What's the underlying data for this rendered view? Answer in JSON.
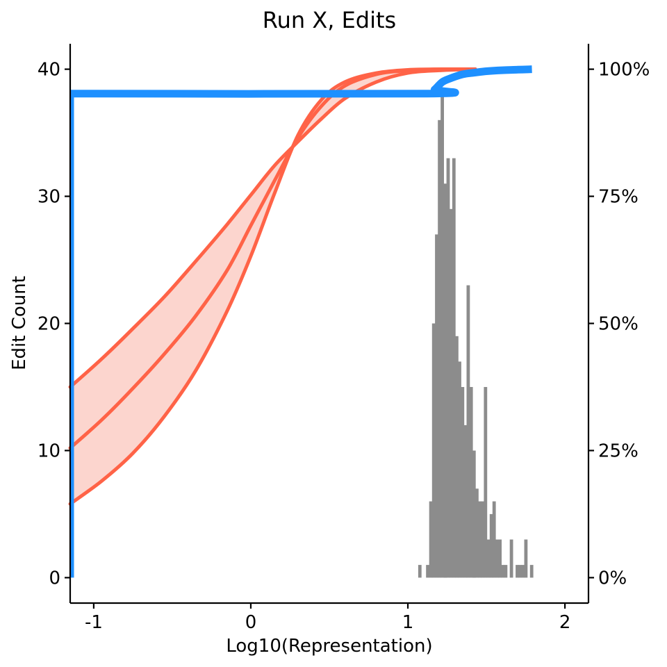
{
  "chart_data": {
    "type": "line",
    "title": "Run X, Edits",
    "xlabel": "Log10(Representation)",
    "ylabel": "Edit Count",
    "xlim": [
      -1.15,
      2.15
    ],
    "ylim": [
      -2,
      42
    ],
    "x_ticks": [
      -1,
      0,
      1,
      2
    ],
    "x_tick_labels": [
      "-1",
      "0",
      "1",
      "2"
    ],
    "y_ticks": [
      0,
      10,
      20,
      30,
      40
    ],
    "y_tick_labels": [
      "0",
      "10",
      "20",
      "30",
      "40"
    ],
    "y2_ticks": [
      0,
      0.25,
      0.5,
      0.75,
      1.0
    ],
    "y2_tick_labels": [
      "0%",
      "25%",
      "50%",
      "75%",
      "100%"
    ],
    "grid": false,
    "legend": "none",
    "colors": {
      "histogram": "#8c8c8c",
      "fit": "#ff6347",
      "band": "#fcd5ce",
      "cumulative": "#1e90ff"
    },
    "histogram": {
      "bin_width": 0.0185,
      "bins": [
        {
          "x": 1.075,
          "count": 1
        },
        {
          "x": 1.125,
          "count": 1
        },
        {
          "x": 1.145,
          "count": 6
        },
        {
          "x": 1.163,
          "count": 20
        },
        {
          "x": 1.182,
          "count": 27
        },
        {
          "x": 1.2,
          "count": 36
        },
        {
          "x": 1.218,
          "count": 38
        },
        {
          "x": 1.237,
          "count": 31
        },
        {
          "x": 1.255,
          "count": 33
        },
        {
          "x": 1.273,
          "count": 29
        },
        {
          "x": 1.292,
          "count": 33
        },
        {
          "x": 1.31,
          "count": 19
        },
        {
          "x": 1.328,
          "count": 17
        },
        {
          "x": 1.347,
          "count": 15
        },
        {
          "x": 1.365,
          "count": 12
        },
        {
          "x": 1.383,
          "count": 23
        },
        {
          "x": 1.402,
          "count": 15
        },
        {
          "x": 1.42,
          "count": 10
        },
        {
          "x": 1.438,
          "count": 7
        },
        {
          "x": 1.457,
          "count": 6
        },
        {
          "x": 1.475,
          "count": 6
        },
        {
          "x": 1.493,
          "count": 15
        },
        {
          "x": 1.512,
          "count": 3
        },
        {
          "x": 1.53,
          "count": 5
        },
        {
          "x": 1.548,
          "count": 6
        },
        {
          "x": 1.567,
          "count": 3
        },
        {
          "x": 1.585,
          "count": 3
        },
        {
          "x": 1.603,
          "count": 1
        },
        {
          "x": 1.622,
          "count": 1
        },
        {
          "x": 1.658,
          "count": 3
        },
        {
          "x": 1.695,
          "count": 1
        },
        {
          "x": 1.713,
          "count": 1
        },
        {
          "x": 1.732,
          "count": 1
        },
        {
          "x": 1.75,
          "count": 3
        },
        {
          "x": 1.787,
          "count": 1
        }
      ]
    },
    "series": [
      {
        "role": "fit-center",
        "x": [
          -1.15,
          -0.95,
          -0.75,
          -0.55,
          -0.35,
          -0.15,
          0.0,
          0.15,
          0.3,
          0.45,
          0.6,
          0.8,
          1.0,
          1.2,
          1.43
        ],
        "y": [
          10.2,
          12.4,
          14.9,
          17.6,
          20.6,
          24.2,
          27.7,
          31.2,
          34.6,
          37.1,
          38.7,
          39.6,
          39.9,
          40,
          40
        ]
      },
      {
        "role": "fit-upper",
        "x": [
          -1.15,
          -0.95,
          -0.75,
          -0.55,
          -0.35,
          -0.15,
          0.0,
          0.15,
          0.3,
          0.45,
          0.6,
          0.8,
          1.0,
          1.2,
          1.43
        ],
        "y": [
          15.0,
          17.2,
          19.6,
          22.1,
          24.9,
          27.8,
          30.1,
          32.4,
          34.3,
          36.1,
          37.7,
          39.0,
          39.7,
          39.9,
          40
        ]
      },
      {
        "role": "fit-lower",
        "x": [
          -1.15,
          -0.95,
          -0.75,
          -0.55,
          -0.35,
          -0.15,
          0.0,
          0.15,
          0.3,
          0.45,
          0.6,
          0.8,
          1.0,
          1.2,
          1.43
        ],
        "y": [
          5.8,
          7.6,
          9.8,
          12.7,
          16.3,
          21.0,
          25.3,
          30.2,
          34.8,
          37.6,
          39.0,
          39.7,
          39.95,
          40,
          40
        ]
      },
      {
        "role": "cumulative-fraction",
        "axis": "right",
        "x": [
          -1.15,
          1.12,
          1.17,
          1.22,
          1.28,
          1.35,
          1.42,
          1.5,
          1.6,
          1.7,
          1.79
        ],
        "y": [
          0.952,
          0.952,
          0.96,
          0.975,
          0.983,
          0.99,
          0.993,
          0.996,
          0.998,
          0.999,
          1.0
        ]
      }
    ]
  }
}
